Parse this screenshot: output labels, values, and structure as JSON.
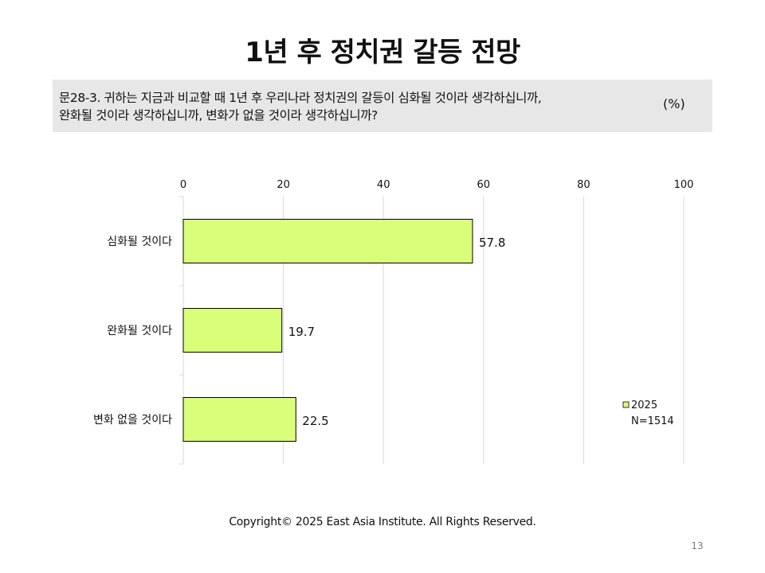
{
  "title": "1년 후 정치권 갈등 전망",
  "question": {
    "line1": "문28-3. 귀하는 지금과 비교할 때 1년 후 우리나라 정치권의 갈등이 심화될 것이라 생각하십니까,",
    "line2": "완화될 것이라 생각하십니까, 변화가 없을 것이라 생각하십니까?",
    "unit": "(%)"
  },
  "chart_data": {
    "type": "bar",
    "orientation": "horizontal",
    "categories": [
      "심화될 것이다",
      "완화될 것이다",
      "변화 없을 것이다"
    ],
    "series": [
      {
        "name": "2025",
        "values": [
          57.8,
          19.7,
          22.5
        ]
      }
    ],
    "legend_note": "N=1514",
    "xlim": [
      0,
      100
    ],
    "xticks": [
      0,
      20,
      40,
      60,
      80,
      100
    ],
    "x_axis_position": "top",
    "grid": true,
    "legend_position": "right",
    "colors": {
      "bar": "#d9ff7a",
      "bar_edge": "#000000",
      "grid": "#d9d9d9"
    }
  },
  "footer": {
    "copyright": "Copyright© 2025 East Asia Institute. All Rights Reserved.",
    "page_number": "13"
  }
}
